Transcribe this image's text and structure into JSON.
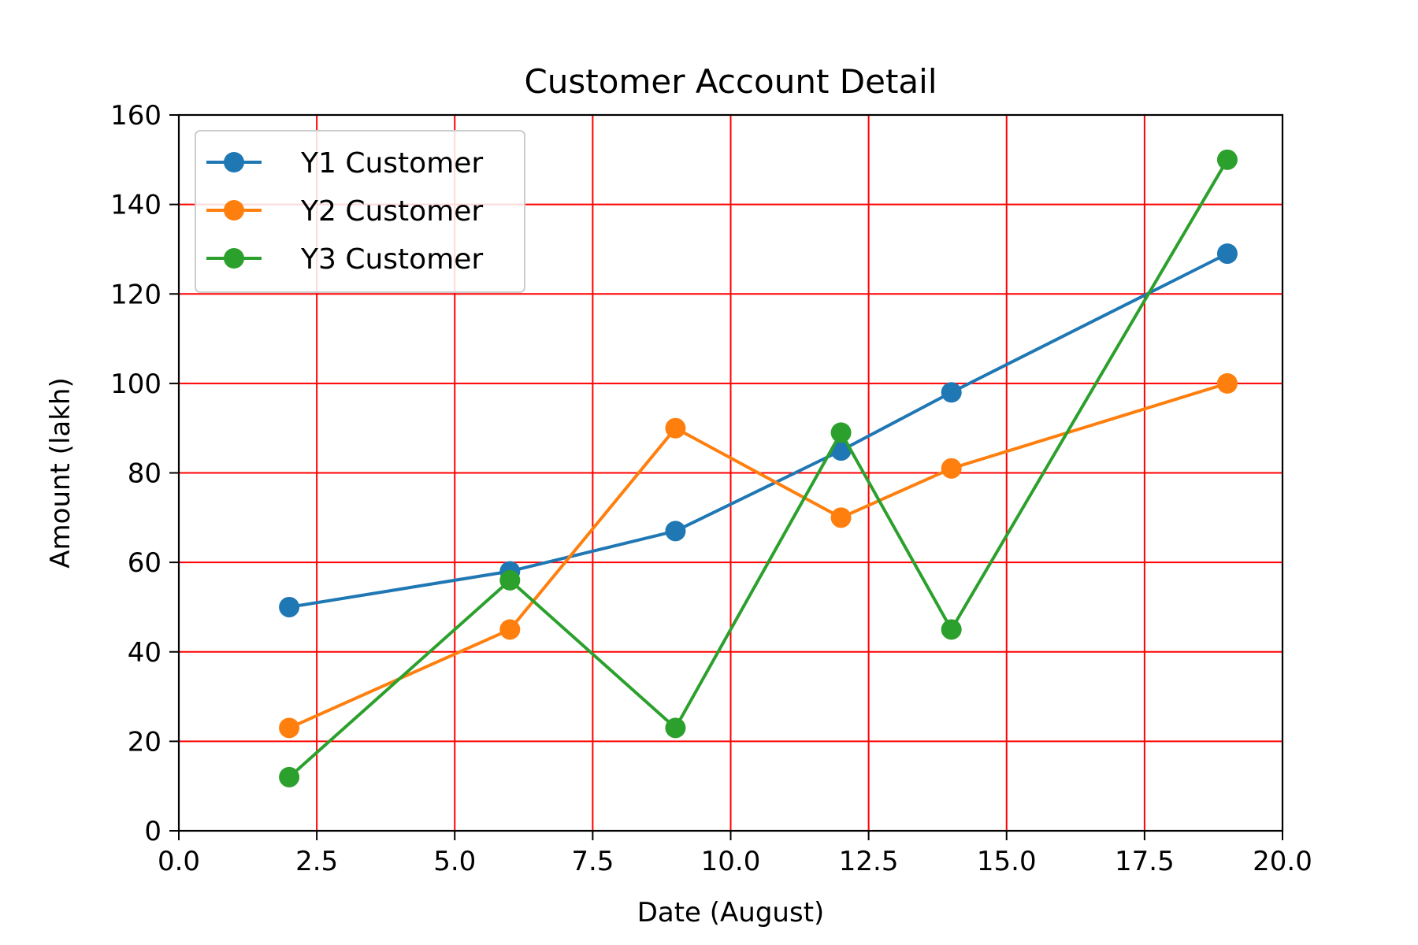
{
  "chart_data": {
    "type": "line",
    "title": "Customer Account Detail",
    "xlabel": "Date (August)",
    "ylabel": "Amount (lakh)",
    "xlim": [
      0.0,
      20.0
    ],
    "ylim": [
      0,
      160
    ],
    "xticks": [
      0.0,
      2.5,
      5.0,
      7.5,
      10.0,
      12.5,
      15.0,
      17.5,
      20.0
    ],
    "xtick_labels": [
      "0.0",
      "2.5",
      "5.0",
      "7.5",
      "10.0",
      "12.5",
      "15.0",
      "17.5",
      "20.0"
    ],
    "yticks": [
      0,
      20,
      40,
      60,
      80,
      100,
      120,
      140,
      160
    ],
    "ytick_labels": [
      "0",
      "20",
      "40",
      "60",
      "80",
      "100",
      "120",
      "140",
      "160"
    ],
    "grid": true,
    "grid_color": "#ff0000",
    "legend_position": "top-left",
    "x": [
      2,
      6,
      9,
      12,
      14,
      19
    ],
    "series": [
      {
        "name": "Y1 Customer",
        "color": "#1f77b4",
        "marker": "circle",
        "values": [
          50,
          58,
          67,
          85,
          98,
          129
        ]
      },
      {
        "name": "Y2 Customer",
        "color": "#ff7f0e",
        "marker": "circle",
        "values": [
          23,
          45,
          90,
          70,
          81,
          100
        ]
      },
      {
        "name": "Y3 Customer",
        "color": "#2ca02c",
        "marker": "circle",
        "values": [
          12,
          56,
          23,
          89,
          45,
          150
        ]
      }
    ]
  }
}
